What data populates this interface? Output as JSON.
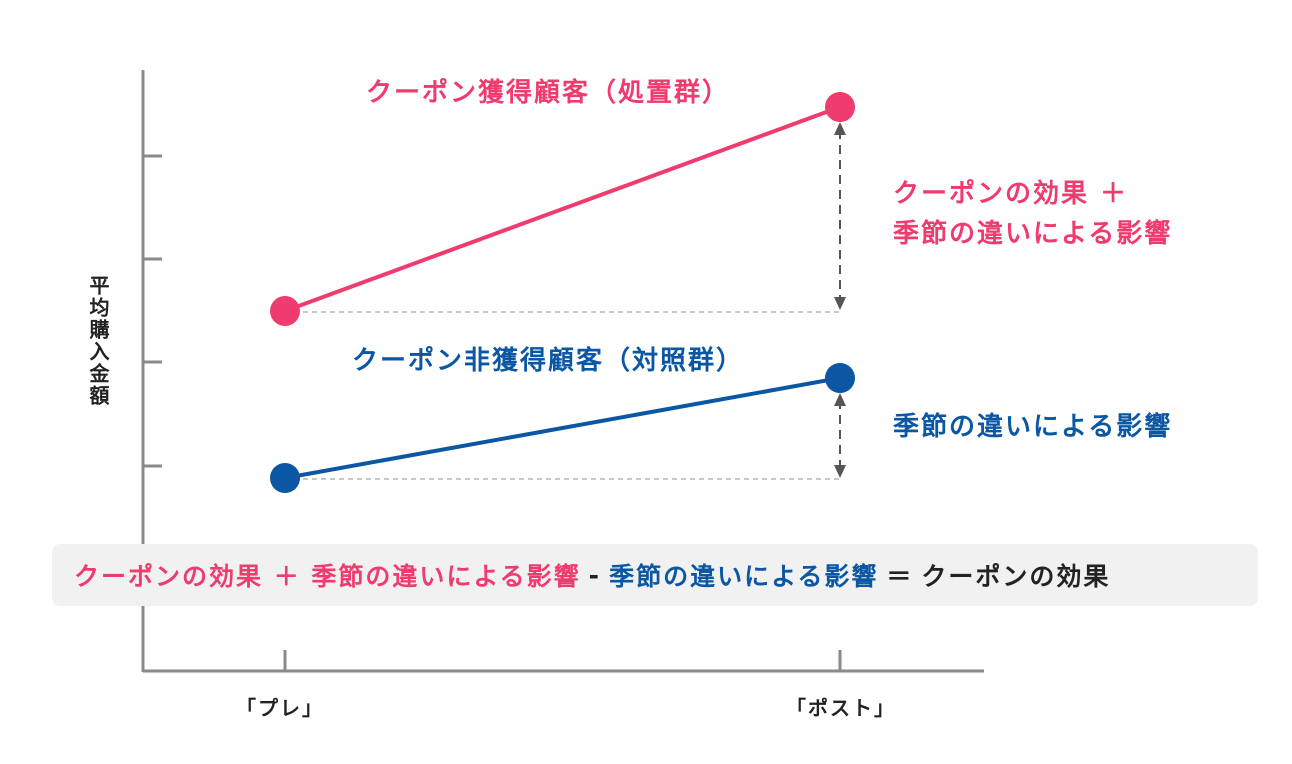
{
  "diagram": {
    "y_axis_label": "平均購入金額",
    "x_ticks": [
      "「プレ」",
      "「ポスト」"
    ],
    "treatment": {
      "label": "クーポン獲得顧客（処置群）",
      "color": "#ef3b6e",
      "effect_line1": "クーポンの効果 ＋",
      "effect_line2": "季節の違いによる影響"
    },
    "control": {
      "label": "クーポン非獲得顧客（対照群）",
      "color": "#0b57a4",
      "effect": "季節の違いによる影響"
    },
    "equation": {
      "term1": "クーポンの効果 ＋ 季節の違いによる影響",
      "minus": "-",
      "term2": "季節の違いによる影響",
      "equals": "＝",
      "result": "クーポンの効果"
    }
  }
}
